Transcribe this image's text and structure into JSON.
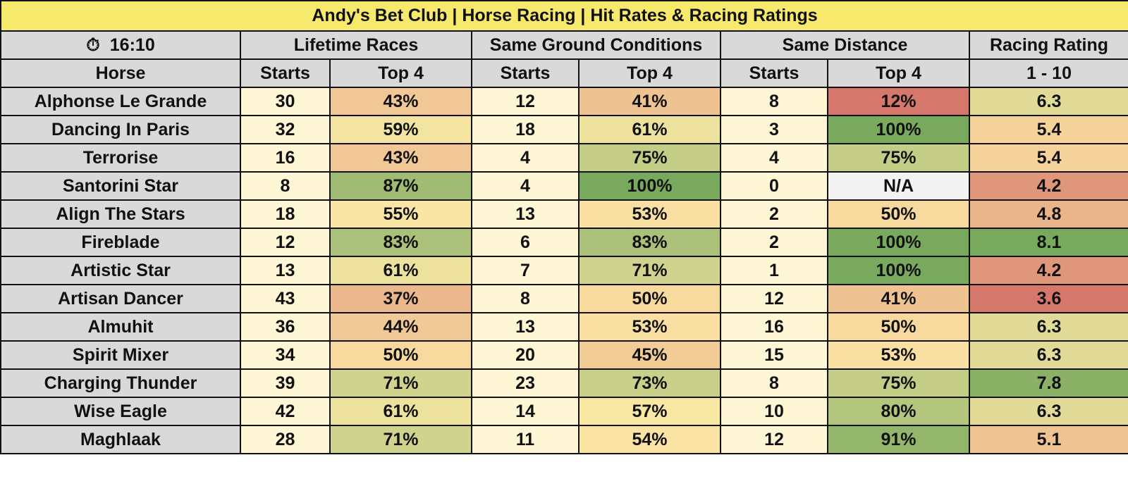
{
  "title": "Andy's Bet Club | Horse Racing | Hit Rates & Racing Ratings",
  "race_time": {
    "icon": "stopwatch-icon",
    "glyph": "⏱",
    "time": "16:10"
  },
  "group_headers": {
    "lifetime": "Lifetime Races",
    "ground": "Same Ground Conditions",
    "distance": "Same Distance",
    "rating": "Racing Rating"
  },
  "sub_headers": {
    "horse": "Horse",
    "starts": "Starts",
    "top4": "Top 4",
    "rating_scale": "1 - 10"
  },
  "rows": [
    {
      "horse": "Alphonse Le Grande",
      "life_starts": "30",
      "life_top4": "43%",
      "ground_starts": "12",
      "ground_top4": "41%",
      "dist_starts": "8",
      "dist_top4": "12%",
      "rating": "6.3"
    },
    {
      "horse": "Dancing In Paris",
      "life_starts": "32",
      "life_top4": "59%",
      "ground_starts": "18",
      "ground_top4": "61%",
      "dist_starts": "3",
      "dist_top4": "100%",
      "rating": "5.4"
    },
    {
      "horse": "Terrorise",
      "life_starts": "16",
      "life_top4": "43%",
      "ground_starts": "4",
      "ground_top4": "75%",
      "dist_starts": "4",
      "dist_top4": "75%",
      "rating": "5.4"
    },
    {
      "horse": "Santorini Star",
      "life_starts": "8",
      "life_top4": "87%",
      "ground_starts": "4",
      "ground_top4": "100%",
      "dist_starts": "0",
      "dist_top4": "N/A",
      "rating": "4.2"
    },
    {
      "horse": "Align The Stars",
      "life_starts": "18",
      "life_top4": "55%",
      "ground_starts": "13",
      "ground_top4": "53%",
      "dist_starts": "2",
      "dist_top4": "50%",
      "rating": "4.8"
    },
    {
      "horse": "Fireblade",
      "life_starts": "12",
      "life_top4": "83%",
      "ground_starts": "6",
      "ground_top4": "83%",
      "dist_starts": "2",
      "dist_top4": "100%",
      "rating": "8.1"
    },
    {
      "horse": "Artistic Star",
      "life_starts": "13",
      "life_top4": "61%",
      "ground_starts": "7",
      "ground_top4": "71%",
      "dist_starts": "1",
      "dist_top4": "100%",
      "rating": "4.2"
    },
    {
      "horse": "Artisan Dancer",
      "life_starts": "43",
      "life_top4": "37%",
      "ground_starts": "8",
      "ground_top4": "50%",
      "dist_starts": "12",
      "dist_top4": "41%",
      "rating": "3.6"
    },
    {
      "horse": "Almuhit",
      "life_starts": "36",
      "life_top4": "44%",
      "ground_starts": "13",
      "ground_top4": "53%",
      "dist_starts": "16",
      "dist_top4": "50%",
      "rating": "6.3"
    },
    {
      "horse": "Spirit Mixer",
      "life_starts": "34",
      "life_top4": "50%",
      "ground_starts": "20",
      "ground_top4": "45%",
      "dist_starts": "15",
      "dist_top4": "53%",
      "rating": "6.3"
    },
    {
      "horse": "Charging Thunder",
      "life_starts": "39",
      "life_top4": "71%",
      "ground_starts": "23",
      "ground_top4": "73%",
      "dist_starts": "8",
      "dist_top4": "75%",
      "rating": "7.8"
    },
    {
      "horse": "Wise Eagle",
      "life_starts": "42",
      "life_top4": "61%",
      "ground_starts": "14",
      "ground_top4": "57%",
      "dist_starts": "10",
      "dist_top4": "80%",
      "rating": "6.3"
    },
    {
      "horse": "Maghlaak",
      "life_starts": "28",
      "life_top4": "71%",
      "ground_starts": "11",
      "ground_top4": "54%",
      "dist_starts": "12",
      "dist_top4": "91%",
      "rating": "5.1"
    }
  ],
  "colors": {
    "title_bg": "#f6e96c",
    "header_bg": "#d9d9d9",
    "horse_bg": "#d9d9d9",
    "starts_bg": "#fef6d4",
    "na_bg": "#f2f2f2",
    "heat_low": "#d5786b",
    "heat_mid": "#fce8a6",
    "heat_high": "#78a95c"
  }
}
